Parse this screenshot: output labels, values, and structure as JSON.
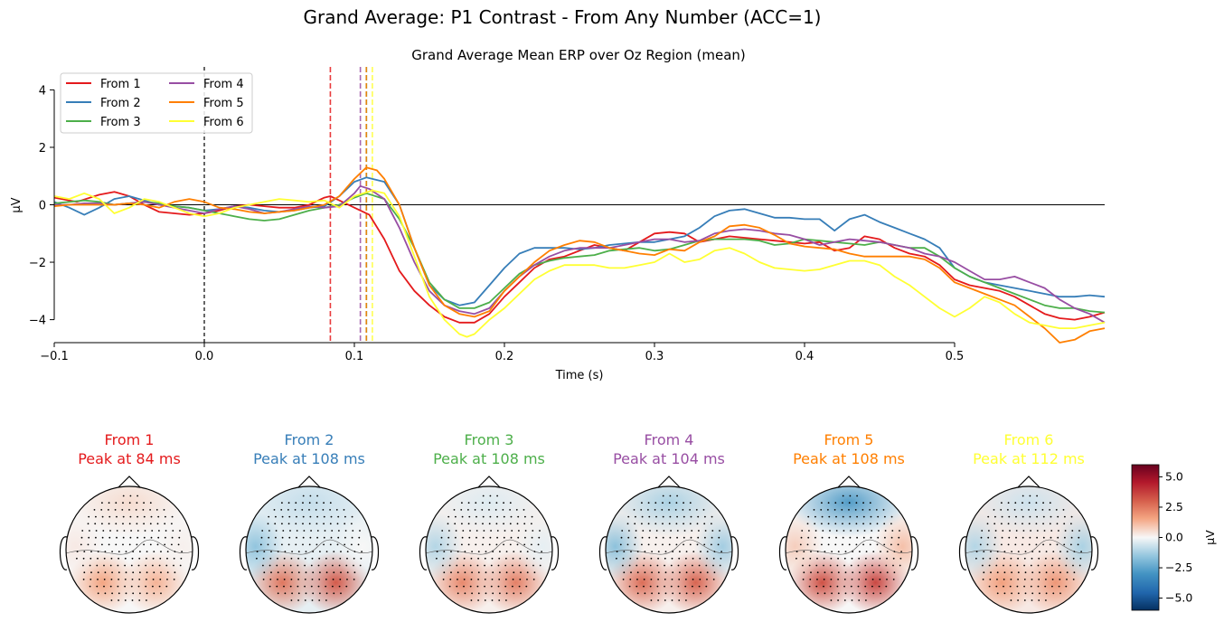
{
  "figure": {
    "suptitle": "Grand Average: P1 Contrast - From Any Number (ACC=1)"
  },
  "chart_data": [
    {
      "type": "line",
      "title": "Grand Average Mean ERP over Oz Region (mean)",
      "xlabel": "Time (s)",
      "ylabel": "µV",
      "xlim": [
        -0.1,
        0.6
      ],
      "ylim": [
        -4.8,
        4.8
      ],
      "xticks": [
        -0.1,
        0.0,
        0.1,
        0.2,
        0.3,
        0.4,
        0.5
      ],
      "xtick_labels": [
        "−0.1",
        "0.0",
        "0.1",
        "0.2",
        "0.3",
        "0.4",
        "0.5"
      ],
      "yticks": [
        -4,
        -2,
        0,
        2,
        4
      ],
      "ytick_labels": [
        "−4",
        "−2",
        "0",
        "2",
        "4"
      ],
      "grid": false,
      "legend_position": "top-left",
      "legend_columns": 2,
      "reference_lines": [
        {
          "orientation": "horizontal",
          "value": 0,
          "style": "solid",
          "color": "#000000"
        },
        {
          "orientation": "vertical",
          "value": 0.0,
          "style": "dashed",
          "color": "#000000"
        }
      ],
      "series": [
        {
          "name": "From 1",
          "color": "#e41a1c",
          "peak_time": 0.084,
          "x": [
            -0.1,
            -0.085,
            -0.07,
            -0.06,
            -0.05,
            -0.04,
            -0.03,
            -0.02,
            -0.01,
            0.0,
            0.01,
            0.02,
            0.03,
            0.04,
            0.05,
            0.06,
            0.07,
            0.08,
            0.084,
            0.09,
            0.1,
            0.11,
            0.12,
            0.13,
            0.14,
            0.15,
            0.16,
            0.17,
            0.18,
            0.19,
            0.2,
            0.21,
            0.22,
            0.23,
            0.24,
            0.25,
            0.26,
            0.27,
            0.28,
            0.29,
            0.3,
            0.31,
            0.32,
            0.33,
            0.34,
            0.35,
            0.36,
            0.37,
            0.38,
            0.39,
            0.4,
            0.41,
            0.42,
            0.43,
            0.44,
            0.45,
            0.46,
            0.47,
            0.48,
            0.49,
            0.5,
            0.51,
            0.52,
            0.53,
            0.54,
            0.55,
            0.56,
            0.57,
            0.58,
            0.59,
            0.6
          ],
          "y": [
            0.25,
            0.1,
            0.35,
            0.45,
            0.3,
            0.0,
            -0.25,
            -0.3,
            -0.35,
            -0.3,
            -0.2,
            -0.05,
            0.0,
            -0.05,
            -0.1,
            -0.1,
            0.0,
            0.25,
            0.3,
            0.15,
            -0.1,
            -0.35,
            -1.2,
            -2.3,
            -3.0,
            -3.5,
            -3.9,
            -4.1,
            -4.1,
            -3.8,
            -3.2,
            -2.7,
            -2.2,
            -1.9,
            -1.8,
            -1.6,
            -1.4,
            -1.5,
            -1.6,
            -1.3,
            -1.0,
            -0.95,
            -1.0,
            -1.3,
            -1.2,
            -1.1,
            -1.15,
            -1.2,
            -1.25,
            -1.3,
            -1.35,
            -1.3,
            -1.6,
            -1.5,
            -1.1,
            -1.2,
            -1.5,
            -1.7,
            -1.8,
            -2.1,
            -2.6,
            -2.8,
            -2.9,
            -3.0,
            -3.2,
            -3.5,
            -3.8,
            -3.95,
            -4.0,
            -3.9,
            -3.75
          ]
        },
        {
          "name": "From 2",
          "color": "#377eb8",
          "peak_time": 0.108,
          "x": [
            -0.1,
            -0.09,
            -0.08,
            -0.07,
            -0.06,
            -0.05,
            -0.04,
            -0.03,
            -0.02,
            -0.01,
            0.0,
            0.01,
            0.02,
            0.03,
            0.04,
            0.05,
            0.06,
            0.07,
            0.08,
            0.09,
            0.1,
            0.108,
            0.12,
            0.13,
            0.14,
            0.15,
            0.16,
            0.17,
            0.18,
            0.19,
            0.2,
            0.21,
            0.22,
            0.23,
            0.24,
            0.25,
            0.26,
            0.27,
            0.28,
            0.29,
            0.3,
            0.31,
            0.32,
            0.33,
            0.34,
            0.35,
            0.36,
            0.37,
            0.38,
            0.39,
            0.4,
            0.41,
            0.42,
            0.43,
            0.44,
            0.45,
            0.46,
            0.47,
            0.48,
            0.49,
            0.5,
            0.51,
            0.52,
            0.53,
            0.54,
            0.55,
            0.56,
            0.57,
            0.58,
            0.59,
            0.6
          ],
          "y": [
            0.1,
            -0.1,
            -0.35,
            -0.1,
            0.2,
            0.3,
            0.15,
            0.0,
            -0.05,
            -0.1,
            -0.2,
            -0.15,
            -0.05,
            -0.1,
            -0.2,
            -0.25,
            -0.2,
            -0.1,
            -0.05,
            0.3,
            0.8,
            0.95,
            0.8,
            0.0,
            -1.5,
            -2.8,
            -3.3,
            -3.5,
            -3.4,
            -2.8,
            -2.2,
            -1.7,
            -1.5,
            -1.5,
            -1.5,
            -1.55,
            -1.5,
            -1.4,
            -1.35,
            -1.3,
            -1.3,
            -1.2,
            -1.1,
            -0.8,
            -0.4,
            -0.2,
            -0.15,
            -0.3,
            -0.45,
            -0.45,
            -0.5,
            -0.5,
            -0.9,
            -0.5,
            -0.35,
            -0.6,
            -0.8,
            -1.0,
            -1.2,
            -1.5,
            -2.2,
            -2.5,
            -2.7,
            -2.8,
            -2.9,
            -3.0,
            -3.1,
            -3.2,
            -3.2,
            -3.15,
            -3.2
          ]
        },
        {
          "name": "From 3",
          "color": "#4daf4a",
          "peak_time": 0.108,
          "x": [
            -0.1,
            -0.09,
            -0.08,
            -0.07,
            -0.06,
            -0.05,
            -0.04,
            -0.03,
            -0.02,
            -0.01,
            0.0,
            0.01,
            0.02,
            0.03,
            0.04,
            0.05,
            0.06,
            0.07,
            0.08,
            0.09,
            0.1,
            0.108,
            0.12,
            0.13,
            0.14,
            0.15,
            0.16,
            0.17,
            0.18,
            0.19,
            0.2,
            0.21,
            0.22,
            0.23,
            0.24,
            0.25,
            0.26,
            0.27,
            0.28,
            0.29,
            0.3,
            0.31,
            0.32,
            0.33,
            0.34,
            0.35,
            0.36,
            0.37,
            0.38,
            0.39,
            0.4,
            0.41,
            0.42,
            0.43,
            0.44,
            0.45,
            0.46,
            0.47,
            0.48,
            0.49,
            0.5,
            0.51,
            0.52,
            0.53,
            0.54,
            0.55,
            0.56,
            0.57,
            0.58,
            0.59,
            0.6
          ],
          "y": [
            0.05,
            0.1,
            0.15,
            0.1,
            0.0,
            0.05,
            0.1,
            0.05,
            -0.05,
            -0.1,
            -0.2,
            -0.3,
            -0.4,
            -0.5,
            -0.55,
            -0.5,
            -0.35,
            -0.2,
            -0.1,
            0.0,
            0.25,
            0.4,
            0.2,
            -0.5,
            -1.5,
            -2.7,
            -3.3,
            -3.6,
            -3.6,
            -3.4,
            -2.9,
            -2.4,
            -2.1,
            -1.95,
            -1.85,
            -1.8,
            -1.75,
            -1.6,
            -1.55,
            -1.5,
            -1.6,
            -1.55,
            -1.4,
            -1.25,
            -1.2,
            -1.2,
            -1.2,
            -1.25,
            -1.4,
            -1.35,
            -1.2,
            -1.25,
            -1.3,
            -1.35,
            -1.4,
            -1.3,
            -1.4,
            -1.5,
            -1.5,
            -1.8,
            -2.2,
            -2.5,
            -2.7,
            -2.9,
            -3.1,
            -3.3,
            -3.5,
            -3.6,
            -3.6,
            -3.7,
            -3.75
          ]
        },
        {
          "name": "From 4",
          "color": "#984ea3",
          "peak_time": 0.104,
          "x": [
            -0.1,
            -0.09,
            -0.08,
            -0.07,
            -0.06,
            -0.05,
            -0.04,
            -0.03,
            -0.02,
            -0.01,
            0.0,
            0.01,
            0.02,
            0.03,
            0.04,
            0.05,
            0.06,
            0.07,
            0.08,
            0.09,
            0.1,
            0.104,
            0.11,
            0.12,
            0.13,
            0.14,
            0.15,
            0.16,
            0.17,
            0.18,
            0.19,
            0.2,
            0.21,
            0.22,
            0.23,
            0.24,
            0.25,
            0.26,
            0.27,
            0.28,
            0.29,
            0.3,
            0.31,
            0.32,
            0.33,
            0.34,
            0.35,
            0.36,
            0.37,
            0.38,
            0.39,
            0.4,
            0.41,
            0.42,
            0.43,
            0.44,
            0.45,
            0.46,
            0.47,
            0.48,
            0.49,
            0.5,
            0.51,
            0.52,
            0.53,
            0.54,
            0.55,
            0.56,
            0.57,
            0.58,
            0.59,
            0.6
          ],
          "y": [
            0.0,
            0.0,
            0.05,
            0.05,
            0.0,
            0.05,
            0.1,
            0.0,
            -0.1,
            -0.2,
            -0.3,
            -0.15,
            -0.05,
            -0.15,
            -0.3,
            -0.25,
            -0.15,
            -0.05,
            -0.1,
            -0.05,
            0.4,
            0.65,
            0.55,
            0.2,
            -0.8,
            -2.0,
            -3.0,
            -3.5,
            -3.7,
            -3.8,
            -3.6,
            -3.0,
            -2.5,
            -2.1,
            -1.8,
            -1.6,
            -1.5,
            -1.5,
            -1.5,
            -1.4,
            -1.3,
            -1.2,
            -1.2,
            -1.3,
            -1.25,
            -1.0,
            -0.9,
            -0.85,
            -0.9,
            -1.0,
            -1.05,
            -1.2,
            -1.4,
            -1.3,
            -1.2,
            -1.25,
            -1.3,
            -1.4,
            -1.5,
            -1.7,
            -1.8,
            -2.0,
            -2.3,
            -2.6,
            -2.6,
            -2.5,
            -2.7,
            -2.9,
            -3.3,
            -3.6,
            -3.8,
            -4.1
          ]
        },
        {
          "name": "From 5",
          "color": "#ff7f00",
          "peak_time": 0.108,
          "x": [
            -0.1,
            -0.09,
            -0.08,
            -0.07,
            -0.06,
            -0.05,
            -0.04,
            -0.03,
            -0.02,
            -0.01,
            0.0,
            0.01,
            0.02,
            0.03,
            0.04,
            0.05,
            0.06,
            0.07,
            0.08,
            0.09,
            0.1,
            0.108,
            0.115,
            0.12,
            0.13,
            0.14,
            0.15,
            0.16,
            0.17,
            0.18,
            0.19,
            0.2,
            0.21,
            0.22,
            0.23,
            0.24,
            0.25,
            0.26,
            0.27,
            0.28,
            0.29,
            0.3,
            0.31,
            0.32,
            0.33,
            0.34,
            0.35,
            0.36,
            0.37,
            0.38,
            0.39,
            0.4,
            0.41,
            0.42,
            0.43,
            0.44,
            0.45,
            0.46,
            0.47,
            0.48,
            0.49,
            0.5,
            0.51,
            0.52,
            0.53,
            0.54,
            0.55,
            0.56,
            0.57,
            0.58,
            0.59,
            0.6
          ],
          "y": [
            -0.05,
            0.0,
            0.0,
            0.0,
            0.0,
            0.05,
            0.0,
            -0.1,
            0.1,
            0.2,
            0.1,
            -0.1,
            -0.15,
            -0.25,
            -0.3,
            -0.25,
            -0.2,
            -0.1,
            0.0,
            0.3,
            0.9,
            1.3,
            1.2,
            0.9,
            0.0,
            -1.5,
            -2.8,
            -3.5,
            -3.8,
            -3.9,
            -3.7,
            -3.0,
            -2.5,
            -2.0,
            -1.6,
            -1.4,
            -1.25,
            -1.3,
            -1.5,
            -1.6,
            -1.7,
            -1.75,
            -1.55,
            -1.6,
            -1.3,
            -1.1,
            -0.75,
            -0.7,
            -0.8,
            -1.05,
            -1.35,
            -1.45,
            -1.5,
            -1.55,
            -1.7,
            -1.8,
            -1.8,
            -1.8,
            -1.8,
            -1.9,
            -2.2,
            -2.7,
            -2.9,
            -3.1,
            -3.3,
            -3.5,
            -3.9,
            -4.3,
            -4.8,
            -4.7,
            -4.4,
            -4.3
          ]
        },
        {
          "name": "From 6",
          "color": "#ffff33",
          "peak_time": 0.112,
          "x": [
            -0.1,
            -0.09,
            -0.08,
            -0.07,
            -0.06,
            -0.05,
            -0.04,
            -0.03,
            -0.02,
            -0.01,
            0.0,
            0.01,
            0.02,
            0.03,
            0.04,
            0.05,
            0.06,
            0.07,
            0.08,
            0.09,
            0.1,
            0.112,
            0.12,
            0.13,
            0.14,
            0.15,
            0.16,
            0.17,
            0.175,
            0.18,
            0.19,
            0.2,
            0.21,
            0.22,
            0.23,
            0.24,
            0.25,
            0.26,
            0.27,
            0.28,
            0.29,
            0.3,
            0.31,
            0.32,
            0.33,
            0.34,
            0.35,
            0.36,
            0.37,
            0.38,
            0.39,
            0.4,
            0.41,
            0.42,
            0.43,
            0.44,
            0.45,
            0.46,
            0.47,
            0.48,
            0.49,
            0.5,
            0.51,
            0.52,
            0.53,
            0.54,
            0.55,
            0.56,
            0.57,
            0.58,
            0.59,
            0.6
          ],
          "y": [
            0.3,
            0.2,
            0.4,
            0.2,
            -0.3,
            -0.1,
            0.2,
            0.1,
            -0.1,
            -0.3,
            -0.4,
            -0.3,
            -0.1,
            0.0,
            0.1,
            0.2,
            0.15,
            0.1,
            0.15,
            -0.1,
            0.3,
            0.5,
            0.4,
            -0.4,
            -1.8,
            -3.2,
            -4.0,
            -4.5,
            -4.6,
            -4.5,
            -4.0,
            -3.6,
            -3.1,
            -2.6,
            -2.3,
            -2.1,
            -2.1,
            -2.1,
            -2.2,
            -2.2,
            -2.1,
            -2.0,
            -1.7,
            -2.0,
            -1.9,
            -1.6,
            -1.5,
            -1.7,
            -2.0,
            -2.2,
            -2.25,
            -2.3,
            -2.25,
            -2.1,
            -1.95,
            -1.95,
            -2.1,
            -2.5,
            -2.8,
            -3.2,
            -3.6,
            -3.9,
            -3.6,
            -3.2,
            -3.4,
            -3.8,
            -4.1,
            -4.2,
            -4.3,
            -4.3,
            -4.2,
            -4.1
          ]
        }
      ]
    },
    {
      "type": "heatmap",
      "subtype": "scalp_topomaps",
      "colormap": "RdBu_r",
      "colorbar_label": "µV",
      "colorbar_range": [
        -6,
        6
      ],
      "colorbar_ticks": [
        5.0,
        2.5,
        0.0,
        -2.5,
        -5.0
      ],
      "colorbar_tick_labels": [
        "5.0",
        "2.5",
        "0.0",
        "−2.5",
        "−5.0"
      ],
      "maps": [
        {
          "title": "From 1",
          "subtitle": "Peak at 84 ms",
          "color": "#e41a1c",
          "frontal": 0.4,
          "left_post": 1.2,
          "right_post": 1.0,
          "left_side": 0.2,
          "right_side": 0.1,
          "center": 0.0
        },
        {
          "title": "From 2",
          "subtitle": "Peak at 108 ms",
          "color": "#377eb8",
          "frontal": -0.6,
          "left_post": 2.2,
          "right_post": 2.8,
          "left_side": -1.2,
          "right_side": 0.0,
          "center": -0.2
        },
        {
          "title": "From 3",
          "subtitle": "Peak at 108 ms",
          "color": "#4daf4a",
          "frontal": -0.3,
          "left_post": 1.8,
          "right_post": 2.0,
          "left_side": -0.8,
          "right_side": -0.2,
          "center": 0.1
        },
        {
          "title": "From 4",
          "subtitle": "Peak at 104 ms",
          "color": "#984ea3",
          "frontal": -0.9,
          "left_post": 2.4,
          "right_post": 2.6,
          "left_side": -1.3,
          "right_side": -1.0,
          "center": 0.1
        },
        {
          "title": "From 5",
          "subtitle": "Peak at 108 ms",
          "color": "#ff7f00",
          "frontal": -2.4,
          "left_post": 3.0,
          "right_post": 3.2,
          "left_side": 0.6,
          "right_side": 0.8,
          "center": 0.0
        },
        {
          "title": "From 6",
          "subtitle": "Peak at 112 ms",
          "color": "#ffff33",
          "frontal": -0.5,
          "left_post": 1.3,
          "right_post": 1.5,
          "left_side": -0.8,
          "right_side": -0.9,
          "center": 0.2
        }
      ]
    }
  ]
}
